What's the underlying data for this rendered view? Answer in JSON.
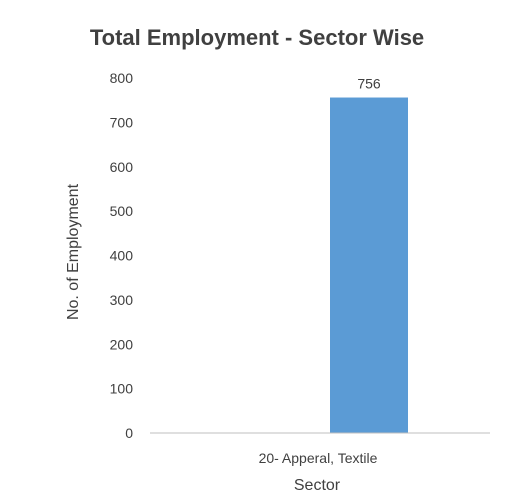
{
  "chart_data": {
    "type": "bar",
    "title": "Total Employment - Sector Wise",
    "xlabel": "Sector",
    "ylabel": "No. of Employment",
    "categories": [
      "20- Apperal, Textile"
    ],
    "values": [
      756
    ],
    "data_labels": [
      "756"
    ],
    "ylim": [
      0,
      800
    ],
    "yticks": [
      0,
      100,
      200,
      300,
      400,
      500,
      600,
      700,
      800
    ],
    "grid": false,
    "legend": "none",
    "bar_color": "#5b9bd5",
    "axis_color": "#bfbfbf",
    "text_color": "#404040"
  }
}
